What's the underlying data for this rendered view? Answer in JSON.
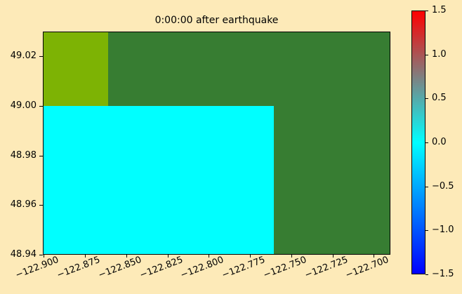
{
  "window": {
    "background": "#FDEAB8",
    "frame_color": "#000000"
  },
  "chart_data": {
    "type": "heatmap",
    "title": "0:00:00 after earthquake",
    "xlabel": "",
    "ylabel": "",
    "grid": false,
    "xlim": [
      -122.9005,
      -122.69
    ],
    "ylim": [
      48.94,
      49.03
    ],
    "x_tick_values": [
      -122.9,
      -122.875,
      -122.85,
      -122.825,
      -122.8,
      -122.775,
      -122.75,
      -122.725,
      -122.7
    ],
    "x_tick_labels": [
      "−122.900",
      "−122.875",
      "−122.850",
      "−122.825",
      "−122.800",
      "−122.775",
      "−122.750",
      "−122.725",
      "−122.700"
    ],
    "y_tick_values": [
      49.02,
      49.0,
      48.98,
      48.96,
      48.94
    ],
    "y_tick_labels": [
      "49.02",
      "49.00",
      "48.98",
      "48.96",
      "48.94"
    ],
    "regions": [
      {
        "name": "field-dark-green",
        "color": "#377D32",
        "lon": [
          -122.9005,
          -122.69
        ],
        "lat": [
          48.94,
          49.03
        ]
      },
      {
        "name": "field-olive-cell",
        "color": "#7DB304",
        "lon": [
          -122.9005,
          -122.861
        ],
        "lat": [
          49.0,
          49.03
        ]
      },
      {
        "name": "field-cyan-zero",
        "color": "#00FFFF",
        "lon": [
          -122.9005,
          -122.7605
        ],
        "lat": [
          48.94,
          49.0
        ]
      }
    ],
    "colorbar": {
      "min": -1.5,
      "max": 1.5,
      "tick_values": [
        1.5,
        1.0,
        0.5,
        0.0,
        -0.5,
        -1.0,
        -1.5
      ],
      "tick_labels": [
        "1.5",
        "1.0",
        "0.5",
        "0.0",
        "−0.5",
        "−1.0",
        "−1.5"
      ],
      "gradient": [
        {
          "color": "#FF0000",
          "pos": 0
        },
        {
          "color": "#00FFFF",
          "pos": 50
        },
        {
          "color": "#0000FF",
          "pos": 100
        }
      ],
      "legend_position": "right"
    }
  }
}
